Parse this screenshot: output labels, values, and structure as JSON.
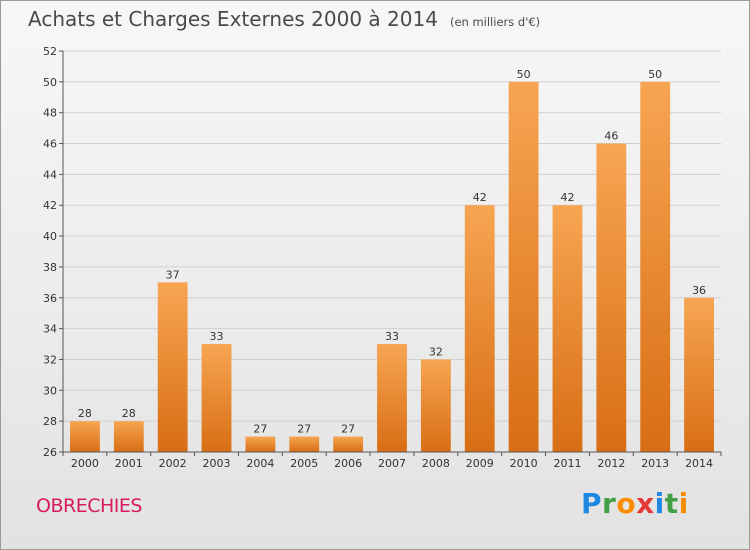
{
  "header": {
    "title": "Achats et Charges Externes 2000 à 2014",
    "subtitle": "(en milliers d'€)"
  },
  "place": "OBRECHIES",
  "logo": {
    "text": "Proxiti",
    "letters": [
      {
        "ch": "P",
        "color": "#1e88e5"
      },
      {
        "ch": "r",
        "color": "#43a047"
      },
      {
        "ch": "o",
        "color": "#fb8c00"
      },
      {
        "ch": "x",
        "color": "#e53935"
      },
      {
        "ch": "i",
        "color": "#1e88e5"
      },
      {
        "ch": "t",
        "color": "#43a047"
      },
      {
        "ch": "i",
        "color": "#fb8c00"
      }
    ]
  },
  "colors": {
    "bar_top": "#f7a552",
    "bar_bottom": "#d86e14",
    "grid": "#d0d0d0",
    "axis": "#555555"
  },
  "chart_data": {
    "type": "bar",
    "title": "Achats et Charges Externes 2000 à 2014",
    "subtitle": "(en milliers d'€)",
    "xlabel": "",
    "ylabel": "",
    "categories": [
      "2000",
      "2001",
      "2002",
      "2003",
      "2004",
      "2005",
      "2006",
      "2007",
      "2008",
      "2009",
      "2010",
      "2011",
      "2012",
      "2013",
      "2014"
    ],
    "values": [
      28,
      28,
      37,
      33,
      27,
      27,
      27,
      33,
      32,
      42,
      50,
      42,
      46,
      50,
      36
    ],
    "ylim": [
      26,
      52
    ],
    "yticks": [
      26,
      28,
      30,
      32,
      34,
      36,
      38,
      40,
      42,
      44,
      46,
      48,
      50,
      52
    ],
    "grid": true,
    "legend": "none"
  }
}
